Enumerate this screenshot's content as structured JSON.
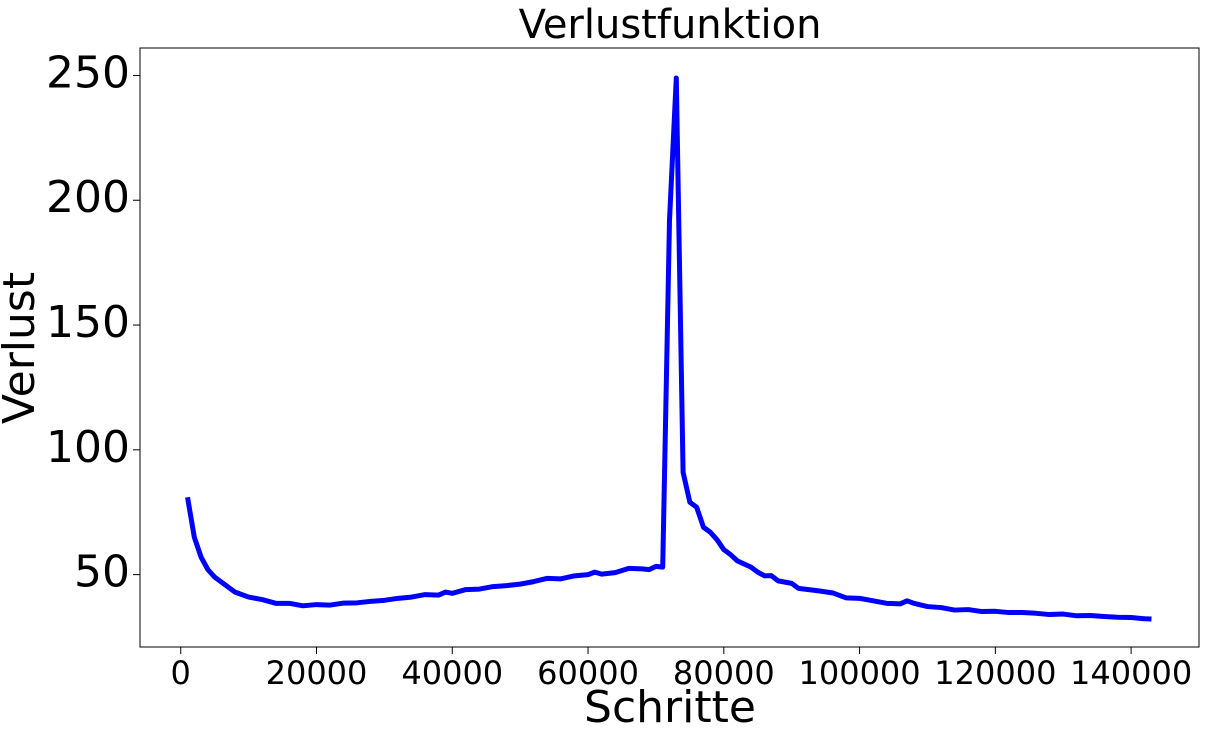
{
  "chart_data": {
    "type": "line",
    "title": "Verlustfunktion",
    "x_label": "Schritte",
    "y_label": "Verlust",
    "x": [
      1000,
      2000,
      3000,
      4000,
      5000,
      6000,
      8000,
      10000,
      12000,
      14000,
      16000,
      18000,
      20000,
      22000,
      24000,
      26000,
      28000,
      30000,
      32000,
      34000,
      36000,
      38000,
      39000,
      40000,
      42000,
      44000,
      46000,
      48000,
      50000,
      52000,
      54000,
      56000,
      58000,
      60000,
      61000,
      62000,
      64000,
      66000,
      68000,
      69000,
      70000,
      71000,
      72000,
      73000,
      74000,
      75000,
      76000,
      77000,
      78000,
      79000,
      80000,
      81000,
      82000,
      84000,
      85000,
      86000,
      87000,
      88000,
      90000,
      91000,
      94000,
      96000,
      98000,
      100000,
      102000,
      104000,
      106000,
      107000,
      108000,
      110000,
      112000,
      114000,
      116000,
      118000,
      120000,
      122000,
      124000,
      126000,
      128000,
      130000,
      132000,
      134000,
      136000,
      138000,
      140000,
      142000,
      143000
    ],
    "series": [
      {
        "name": "Verlust",
        "color": "#0000ff",
        "values": [
          81,
          65,
          57,
          52,
          49,
          47,
          43,
          41,
          40,
          38.5,
          38.5,
          37.5,
          38,
          37.8,
          38.6,
          38.7,
          39.3,
          39.7,
          40.5,
          41,
          42,
          41.8,
          43,
          42.5,
          44,
          44.2,
          45.2,
          45.6,
          46.2,
          47.2,
          48.5,
          48.3,
          49.5,
          50,
          51,
          50.2,
          50.8,
          52.5,
          52.3,
          52,
          53.3,
          53,
          192,
          249,
          91,
          79,
          77,
          69,
          67,
          64,
          60,
          58,
          55.5,
          53,
          51,
          49.5,
          49.6,
          47.5,
          46.5,
          44.5,
          43.5,
          42.7,
          40.7,
          40.5,
          39.5,
          38.5,
          38.3,
          39.5,
          38.5,
          37.2,
          36.8,
          35.8,
          36,
          35.2,
          35.3,
          34.8,
          34.8,
          34.5,
          34,
          34.2,
          33.5,
          33.6,
          33.2,
          32.9,
          32.8,
          32.3,
          32.2
        ]
      }
    ],
    "xlim": [
      -6000,
      150000
    ],
    "ylim": [
      21,
      261
    ],
    "xticks": [
      0,
      20000,
      40000,
      60000,
      80000,
      100000,
      120000,
      140000
    ],
    "yticks": [
      50,
      100,
      150,
      200,
      250
    ],
    "grid": false
  }
}
